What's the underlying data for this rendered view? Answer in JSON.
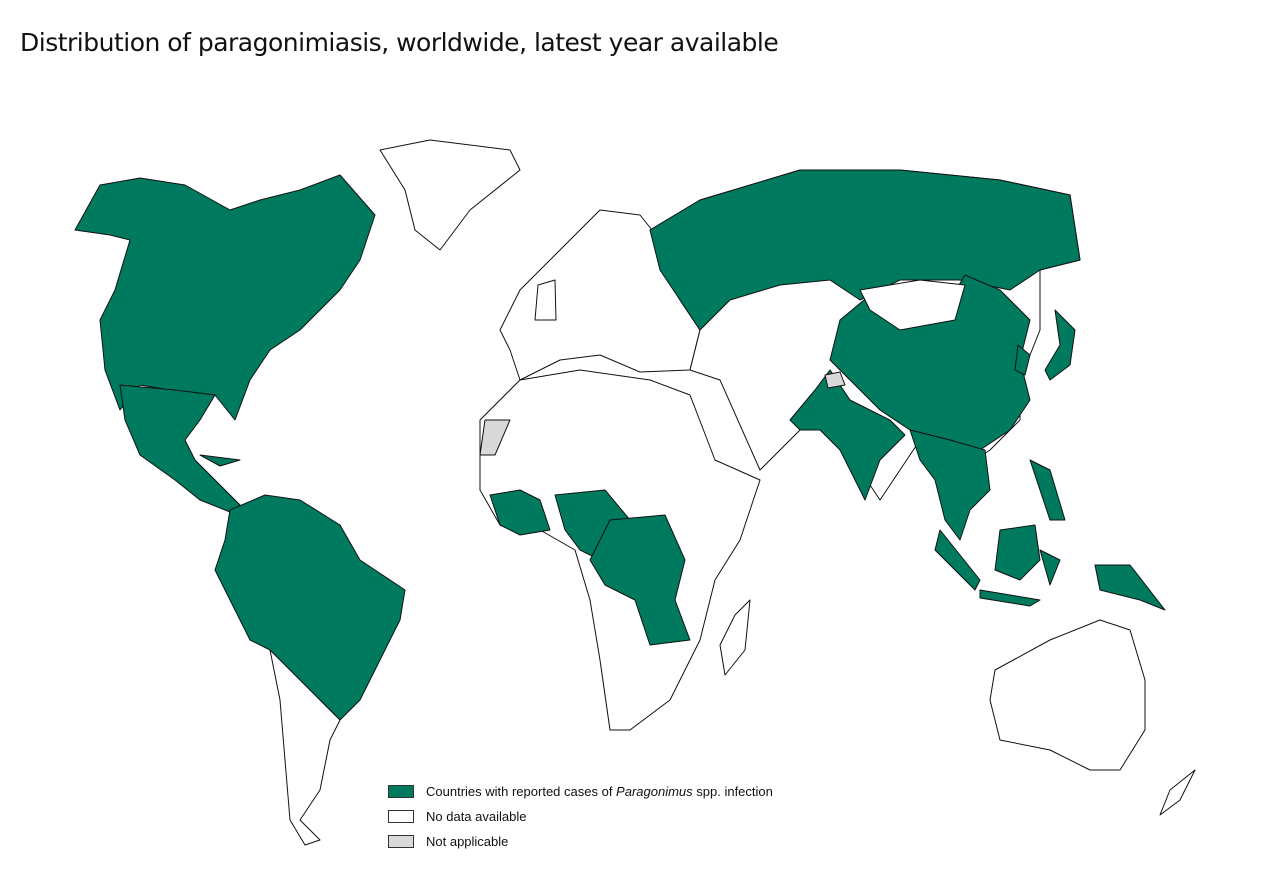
{
  "title": "Distribution of paragonimiasis, worldwide, latest year available",
  "colors": {
    "reported": "#007a5e",
    "no_data": "#ffffff",
    "not_applicable": "#d9d9d9",
    "border": "#111111"
  },
  "legend": [
    {
      "label_before": "Countries with reported cases of ",
      "label_italic": "Paragonimus",
      "label_after": " spp. infection",
      "color": "#007a5e"
    },
    {
      "label_before": "No data available",
      "label_italic": "",
      "label_after": "",
      "color": "#ffffff"
    },
    {
      "label_before": "Not applicable",
      "label_italic": "",
      "label_after": "",
      "color": "#d9d9d9"
    }
  ]
}
